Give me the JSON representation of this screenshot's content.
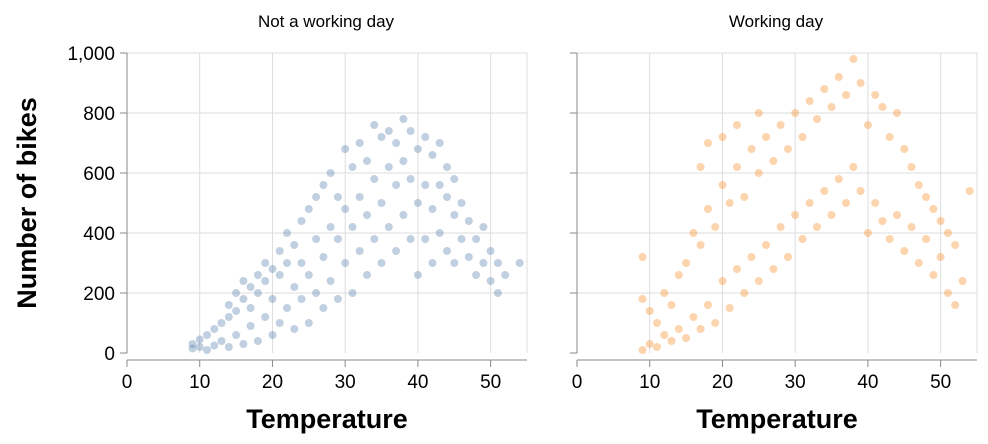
{
  "chart_data": {
    "type": "scatter",
    "xlabel": "Temperature",
    "ylabel": "Number of bikes",
    "xlim": [
      0,
      55
    ],
    "ylim": [
      0,
      1000
    ],
    "x_ticks": [
      "0",
      "10",
      "20",
      "30",
      "40",
      "50"
    ],
    "y_ticks": [
      "0",
      "200",
      "400",
      "600",
      "800",
      "1,000"
    ],
    "grid": true,
    "series": [
      {
        "name": "Not a working day",
        "color": "#4c78a8",
        "points": [
          [
            9,
            15
          ],
          [
            9,
            30
          ],
          [
            10,
            20
          ],
          [
            10,
            45
          ],
          [
            11,
            10
          ],
          [
            11,
            60
          ],
          [
            12,
            25
          ],
          [
            12,
            80
          ],
          [
            13,
            40
          ],
          [
            13,
            100
          ],
          [
            14,
            20
          ],
          [
            14,
            120
          ],
          [
            14,
            160
          ],
          [
            15,
            60
          ],
          [
            15,
            140
          ],
          [
            15,
            200
          ],
          [
            16,
            30
          ],
          [
            16,
            180
          ],
          [
            16,
            240
          ],
          [
            17,
            90
          ],
          [
            17,
            150
          ],
          [
            17,
            220
          ],
          [
            18,
            40
          ],
          [
            18,
            200
          ],
          [
            18,
            260
          ],
          [
            19,
            120
          ],
          [
            19,
            240
          ],
          [
            19,
            300
          ],
          [
            20,
            60
          ],
          [
            20,
            180
          ],
          [
            20,
            280
          ],
          [
            21,
            100
          ],
          [
            21,
            260
          ],
          [
            21,
            340
          ],
          [
            22,
            150
          ],
          [
            22,
            300
          ],
          [
            22,
            400
          ],
          [
            23,
            80
          ],
          [
            23,
            220
          ],
          [
            23,
            360
          ],
          [
            24,
            180
          ],
          [
            24,
            300
          ],
          [
            24,
            440
          ],
          [
            25,
            100
          ],
          [
            25,
            260
          ],
          [
            25,
            480
          ],
          [
            26,
            200
          ],
          [
            26,
            380
          ],
          [
            26,
            520
          ],
          [
            27,
            150
          ],
          [
            27,
            320
          ],
          [
            27,
            560
          ],
          [
            28,
            240
          ],
          [
            28,
            420
          ],
          [
            28,
            600
          ],
          [
            29,
            180
          ],
          [
            29,
            380
          ],
          [
            29,
            520
          ],
          [
            30,
            300
          ],
          [
            30,
            480
          ],
          [
            30,
            680
          ],
          [
            31,
            200
          ],
          [
            31,
            420
          ],
          [
            31,
            620
          ],
          [
            32,
            340
          ],
          [
            32,
            520
          ],
          [
            32,
            700
          ],
          [
            33,
            260
          ],
          [
            33,
            460
          ],
          [
            33,
            640
          ],
          [
            34,
            380
          ],
          [
            34,
            580
          ],
          [
            34,
            760
          ],
          [
            35,
            300
          ],
          [
            35,
            500
          ],
          [
            35,
            720
          ],
          [
            36,
            420
          ],
          [
            36,
            620
          ],
          [
            36,
            740
          ],
          [
            37,
            340
          ],
          [
            37,
            560
          ],
          [
            37,
            700
          ],
          [
            38,
            460
          ],
          [
            38,
            640
          ],
          [
            38,
            780
          ],
          [
            39,
            380
          ],
          [
            39,
            580
          ],
          [
            39,
            740
          ],
          [
            40,
            260
          ],
          [
            40,
            500
          ],
          [
            40,
            680
          ],
          [
            41,
            380
          ],
          [
            41,
            560
          ],
          [
            41,
            720
          ],
          [
            42,
            300
          ],
          [
            42,
            480
          ],
          [
            42,
            660
          ],
          [
            43,
            400
          ],
          [
            43,
            560
          ],
          [
            43,
            700
          ],
          [
            44,
            340
          ],
          [
            44,
            520
          ],
          [
            44,
            620
          ],
          [
            45,
            300
          ],
          [
            45,
            460
          ],
          [
            45,
            580
          ],
          [
            46,
            380
          ],
          [
            46,
            500
          ],
          [
            47,
            320
          ],
          [
            47,
            440
          ],
          [
            48,
            260
          ],
          [
            48,
            380
          ],
          [
            49,
            300
          ],
          [
            49,
            420
          ],
          [
            50,
            240
          ],
          [
            50,
            340
          ],
          [
            51,
            200
          ],
          [
            51,
            300
          ],
          [
            52,
            260
          ],
          [
            54,
            300
          ]
        ]
      },
      {
        "name": "Working day",
        "color": "#f58518",
        "points": [
          [
            9,
            10
          ],
          [
            9,
            180
          ],
          [
            9,
            320
          ],
          [
            10,
            30
          ],
          [
            10,
            140
          ],
          [
            11,
            20
          ],
          [
            11,
            100
          ],
          [
            12,
            60
          ],
          [
            12,
            200
          ],
          [
            13,
            40
          ],
          [
            13,
            160
          ],
          [
            14,
            80
          ],
          [
            14,
            260
          ],
          [
            15,
            50
          ],
          [
            15,
            300
          ],
          [
            16,
            120
          ],
          [
            16,
            400
          ],
          [
            17,
            80
          ],
          [
            17,
            360
          ],
          [
            17,
            620
          ],
          [
            18,
            160
          ],
          [
            18,
            480
          ],
          [
            18,
            700
          ],
          [
            19,
            100
          ],
          [
            19,
            420
          ],
          [
            20,
            240
          ],
          [
            20,
            560
          ],
          [
            20,
            720
          ],
          [
            21,
            150
          ],
          [
            21,
            500
          ],
          [
            22,
            280
          ],
          [
            22,
            620
          ],
          [
            22,
            760
          ],
          [
            23,
            200
          ],
          [
            23,
            520
          ],
          [
            24,
            320
          ],
          [
            24,
            680
          ],
          [
            25,
            240
          ],
          [
            25,
            600
          ],
          [
            25,
            800
          ],
          [
            26,
            360
          ],
          [
            26,
            720
          ],
          [
            27,
            280
          ],
          [
            27,
            640
          ],
          [
            28,
            420
          ],
          [
            28,
            760
          ],
          [
            29,
            320
          ],
          [
            29,
            680
          ],
          [
            30,
            460
          ],
          [
            30,
            800
          ],
          [
            31,
            380
          ],
          [
            31,
            720
          ],
          [
            32,
            500
          ],
          [
            32,
            840
          ],
          [
            33,
            420
          ],
          [
            33,
            780
          ],
          [
            34,
            540
          ],
          [
            34,
            880
          ],
          [
            35,
            460
          ],
          [
            35,
            820
          ],
          [
            36,
            580
          ],
          [
            36,
            920
          ],
          [
            37,
            500
          ],
          [
            37,
            860
          ],
          [
            38,
            620
          ],
          [
            38,
            980
          ],
          [
            39,
            540
          ],
          [
            39,
            900
          ],
          [
            40,
            400
          ],
          [
            40,
            760
          ],
          [
            41,
            500
          ],
          [
            41,
            860
          ],
          [
            42,
            440
          ],
          [
            42,
            820
          ],
          [
            43,
            380
          ],
          [
            43,
            720
          ],
          [
            44,
            460
          ],
          [
            44,
            800
          ],
          [
            45,
            340
          ],
          [
            45,
            680
          ],
          [
            46,
            420
          ],
          [
            46,
            620
          ],
          [
            47,
            300
          ],
          [
            47,
            560
          ],
          [
            48,
            380
          ],
          [
            48,
            520
          ],
          [
            49,
            260
          ],
          [
            49,
            480
          ],
          [
            50,
            320
          ],
          [
            50,
            440
          ],
          [
            51,
            200
          ],
          [
            51,
            400
          ],
          [
            52,
            160
          ],
          [
            52,
            360
          ],
          [
            53,
            240
          ],
          [
            54,
            540
          ]
        ]
      }
    ]
  }
}
